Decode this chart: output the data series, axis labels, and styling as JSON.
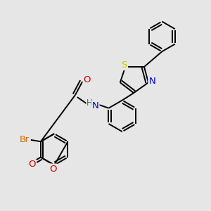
{
  "bg_color": "#e6e6e6",
  "bond_color": "#000000",
  "bond_width": 1.4,
  "atoms": {
    "S": {
      "color": "#cccc00"
    },
    "N": {
      "color": "#0000cc"
    },
    "O": {
      "color": "#cc0000"
    },
    "Br": {
      "color": "#cc6600"
    },
    "H": {
      "color": "#008888"
    }
  },
  "layout": {
    "xlim": [
      0,
      10
    ],
    "ylim": [
      0,
      10
    ]
  }
}
